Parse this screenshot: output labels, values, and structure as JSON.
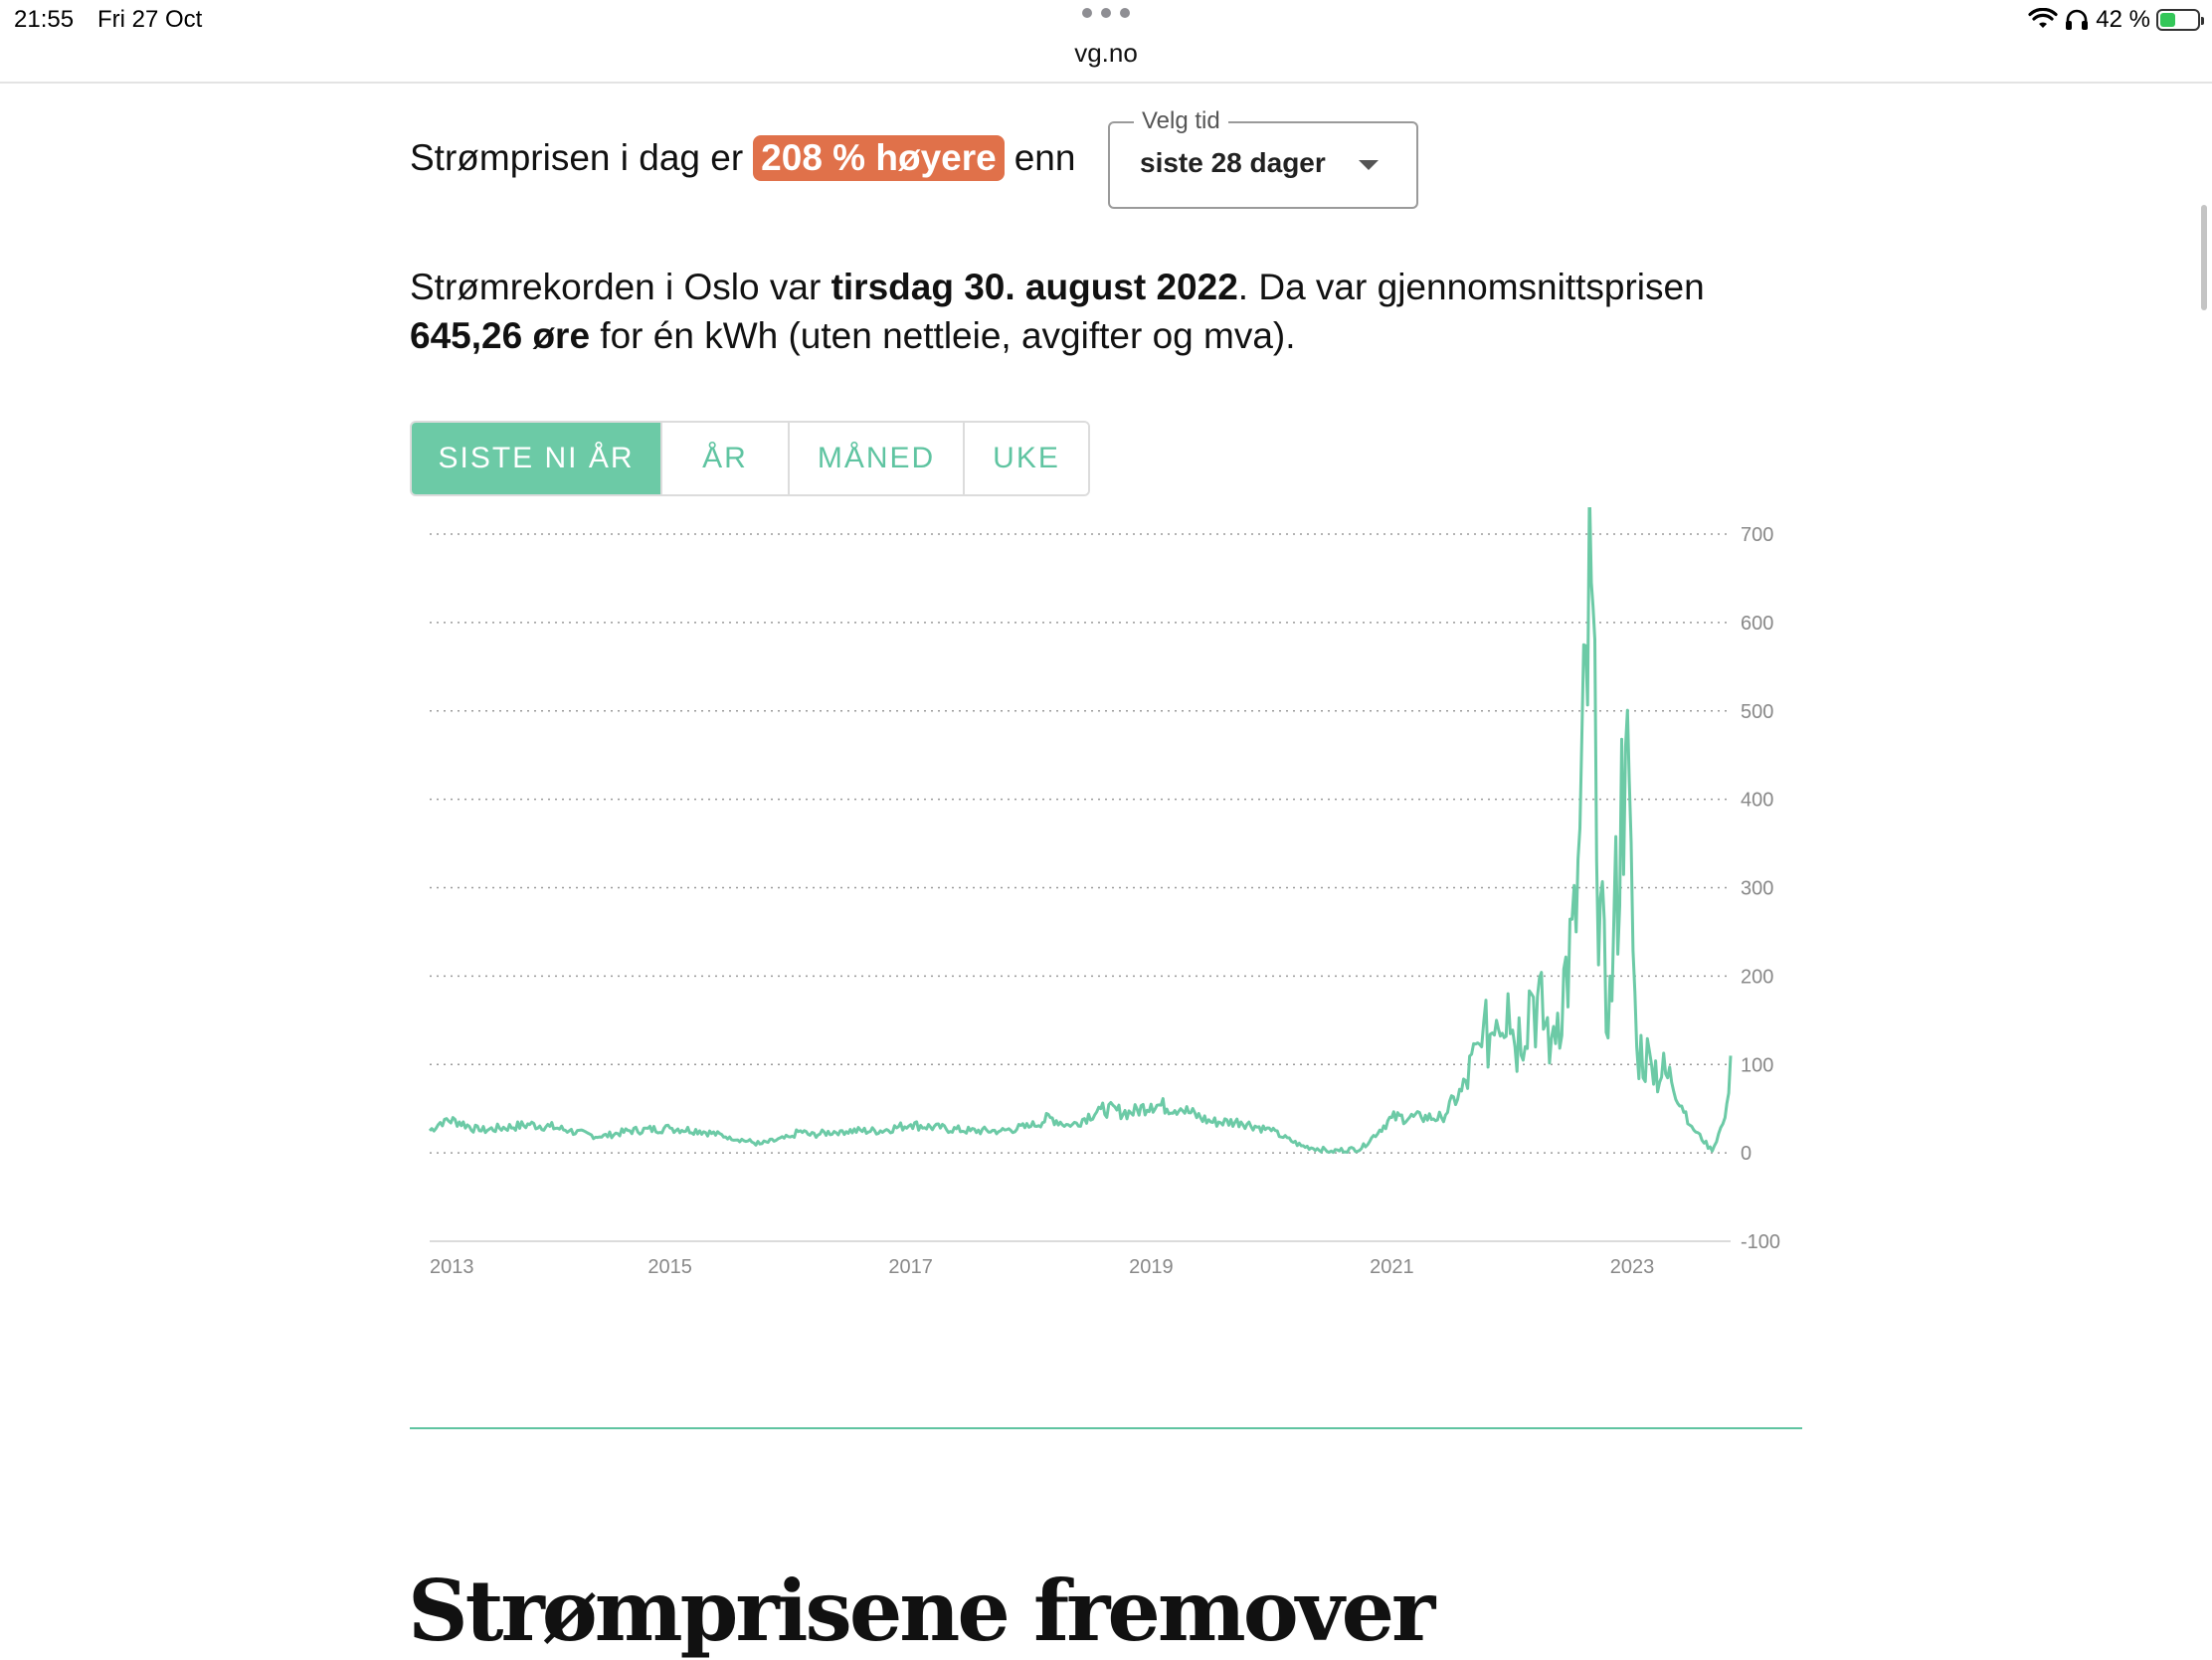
{
  "status_bar": {
    "time": "21:55",
    "date": "Fri 27 Oct",
    "url": "vg.no",
    "battery": "42 %",
    "battery_level": 0.42,
    "icons": [
      "wifi-icon",
      "headphones-icon",
      "battery-charging-icon"
    ]
  },
  "headline": {
    "prefix": "Strømprisen i dag er",
    "badge": "208 % høyere",
    "suffix": "enn",
    "badge_color": "#e0714a"
  },
  "time_select": {
    "legend": "Velg tid",
    "value": "siste 28 dager"
  },
  "record": {
    "part1": "Strømrekorden i Oslo var ",
    "date": "tirsdag 30. august 2022",
    "part2": ". Da var gjennomsnittsprisen ",
    "price": "645,26 øre",
    "part3": " for én kWh (uten nettleie, avgifter og mva)."
  },
  "tabs": [
    {
      "label": "SISTE NI ÅR",
      "active": true
    },
    {
      "label": "ÅR",
      "active": false
    },
    {
      "label": "MÅNED",
      "active": false
    },
    {
      "label": "UKE",
      "active": false
    }
  ],
  "accent_color": "#6ccaa6",
  "chart_data": {
    "type": "line",
    "title": "",
    "xlabel": "",
    "ylabel": "",
    "ylim": [
      -100,
      700
    ],
    "xlim": [
      "2013-01-01",
      "2023-10-27"
    ],
    "y_ticks": [
      "700",
      "600",
      "500",
      "400",
      "300",
      "200",
      "100",
      "0",
      "-100"
    ],
    "x_ticks": [
      "2013",
      "2015",
      "2017",
      "2019",
      "2021",
      "2023"
    ],
    "grid": true,
    "grid_style": "dotted",
    "y_axis_side": "right",
    "series": [
      {
        "color": "#6ccaa6",
        "points": [
          [
            "2013-01-01",
            25
          ],
          [
            "2013-02-15",
            38
          ],
          [
            "2013-04-01",
            35
          ],
          [
            "2013-06-01",
            25
          ],
          [
            "2013-08-01",
            28
          ],
          [
            "2013-11-01",
            32
          ],
          [
            "2014-01-01",
            30
          ],
          [
            "2014-03-01",
            25
          ],
          [
            "2014-06-01",
            18
          ],
          [
            "2014-09-01",
            25
          ],
          [
            "2015-01-01",
            28
          ],
          [
            "2015-04-01",
            25
          ],
          [
            "2015-07-01",
            18
          ],
          [
            "2015-10-01",
            10
          ],
          [
            "2016-01-01",
            18
          ],
          [
            "2016-02-01",
            25
          ],
          [
            "2016-03-01",
            20
          ],
          [
            "2016-06-01",
            25
          ],
          [
            "2016-10-01",
            25
          ],
          [
            "2017-01-01",
            32
          ],
          [
            "2017-04-01",
            28
          ],
          [
            "2017-07-01",
            25
          ],
          [
            "2017-10-01",
            25
          ],
          [
            "2018-01-01",
            30
          ],
          [
            "2018-03-01",
            40
          ],
          [
            "2018-05-01",
            30
          ],
          [
            "2018-08-01",
            50
          ],
          [
            "2018-11-01",
            45
          ],
          [
            "2019-01-01",
            55
          ],
          [
            "2019-04-01",
            50
          ],
          [
            "2019-07-01",
            35
          ],
          [
            "2019-10-01",
            35
          ],
          [
            "2020-01-01",
            25
          ],
          [
            "2020-04-01",
            8
          ],
          [
            "2020-07-01",
            2
          ],
          [
            "2020-10-01",
            5
          ],
          [
            "2021-01-01",
            40
          ],
          [
            "2021-04-01",
            40
          ],
          [
            "2021-06-01",
            40
          ],
          [
            "2021-08-01",
            70
          ],
          [
            "2021-10-01",
            120
          ],
          [
            "2021-11-15",
            150
          ],
          [
            "2021-12-20",
            180
          ],
          [
            "2022-01-10",
            120
          ],
          [
            "2022-03-01",
            180
          ],
          [
            "2022-05-01",
            130
          ],
          [
            "2022-07-15",
            250
          ],
          [
            "2022-08-30",
            645
          ],
          [
            "2022-09-15",
            330
          ],
          [
            "2022-10-20",
            130
          ],
          [
            "2022-12-12",
            460
          ],
          [
            "2023-01-15",
            120
          ],
          [
            "2023-03-01",
            100
          ],
          [
            "2023-05-01",
            80
          ],
          [
            "2023-07-01",
            30
          ],
          [
            "2023-09-01",
            2
          ],
          [
            "2023-10-10",
            40
          ],
          [
            "2023-10-27",
            110
          ]
        ]
      }
    ]
  },
  "section_heading": "Strømprisene fremover"
}
